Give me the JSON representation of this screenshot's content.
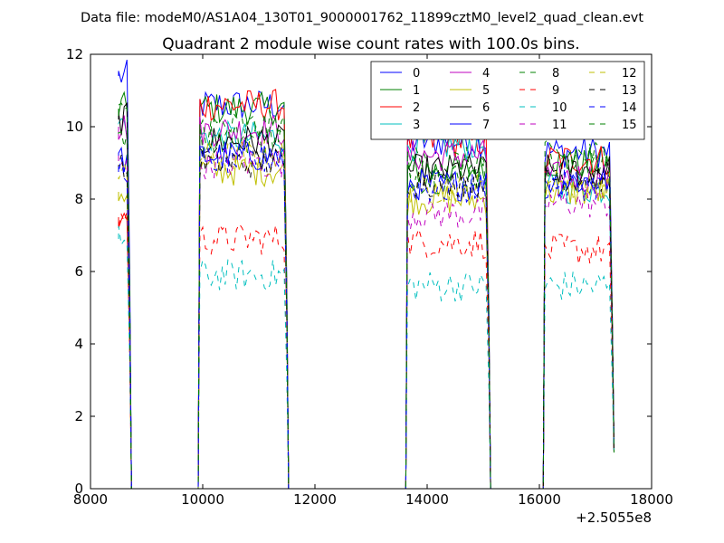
{
  "suptitle": "Data file: modeM0/AS1A04_130T01_9000001762_11899cztM0_level2_quad_clean.evt",
  "chart_data": {
    "type": "line",
    "title": "Quadrant 2 module wise count rates with 100.0s bins.",
    "xlabel": "",
    "ylabel": "",
    "x_offset_label": "+2.5055e8",
    "xlim": [
      8000,
      18000
    ],
    "ylim": [
      0,
      12
    ],
    "xticks": [
      8000,
      10000,
      12000,
      14000,
      16000,
      18000
    ],
    "xtick_labels": [
      "8000",
      "10000",
      "12000",
      "14000",
      "16000",
      "18000"
    ],
    "yticks": [
      0,
      2,
      4,
      6,
      8,
      10,
      12
    ],
    "ytick_labels": [
      "0",
      "2",
      "4",
      "6",
      "8",
      "10",
      "12"
    ],
    "grid": false,
    "legend_position": "top-right",
    "legend_columns": 4,
    "segments": [
      {
        "start": 8500,
        "end": 8700
      },
      {
        "start": 9950,
        "end": 11500
      },
      {
        "start": 13650,
        "end": 15100
      },
      {
        "start": 16100,
        "end": 17300
      }
    ],
    "series": [
      {
        "name": "0",
        "color": "#0000ff",
        "dash": "solid",
        "seg_levels": [
          11.4,
          10.6,
          9.6,
          9.3
        ]
      },
      {
        "name": "1",
        "color": "#008000",
        "dash": "solid",
        "seg_levels": [
          10.5,
          10.5,
          8.8,
          9.0
        ]
      },
      {
        "name": "2",
        "color": "#ff0000",
        "dash": "solid",
        "seg_levels": [
          7.4,
          10.6,
          9.6,
          9.1
        ]
      },
      {
        "name": "3",
        "color": "#00bfbf",
        "dash": "solid",
        "seg_levels": [
          10.1,
          9.7,
          9.5,
          8.3
        ]
      },
      {
        "name": "4",
        "color": "#bf00bf",
        "dash": "solid",
        "seg_levels": [
          10.0,
          9.9,
          9.2,
          8.6
        ]
      },
      {
        "name": "5",
        "color": "#bfbf00",
        "dash": "solid",
        "seg_levels": [
          8.2,
          8.8,
          8.0,
          8.2
        ]
      },
      {
        "name": "6",
        "color": "#000000",
        "dash": "solid",
        "seg_levels": [
          10.2,
          9.6,
          8.8,
          8.8
        ]
      },
      {
        "name": "7",
        "color": "#0000ff",
        "dash": "solid",
        "seg_levels": [
          9.1,
          9.2,
          8.4,
          8.5
        ]
      },
      {
        "name": "8",
        "color": "#008000",
        "dash": "dashed",
        "seg_levels": [
          9.8,
          9.7,
          8.6,
          8.9
        ]
      },
      {
        "name": "9",
        "color": "#ff0000",
        "dash": "dashed",
        "seg_levels": [
          7.5,
          6.9,
          6.8,
          6.6
        ]
      },
      {
        "name": "10",
        "color": "#00bfbf",
        "dash": "dashed",
        "seg_levels": [
          6.9,
          5.9,
          5.6,
          5.6
        ]
      },
      {
        "name": "11",
        "color": "#bf00bf",
        "dash": "dashed",
        "seg_levels": [
          9.2,
          9.0,
          7.6,
          7.9
        ]
      },
      {
        "name": "12",
        "color": "#bfbf00",
        "dash": "dashed",
        "seg_levels": [
          8.6,
          9.2,
          8.3,
          8.4
        ]
      },
      {
        "name": "13",
        "color": "#000000",
        "dash": "dashed",
        "seg_levels": [
          8.8,
          9.0,
          8.5,
          8.6
        ]
      },
      {
        "name": "14",
        "color": "#0000ff",
        "dash": "dashed",
        "seg_levels": [
          8.9,
          9.1,
          8.3,
          8.4
        ]
      },
      {
        "name": "15",
        "color": "#008000",
        "dash": "dashed",
        "seg_levels": [
          10.3,
          10.0,
          9.0,
          9.2
        ]
      }
    ]
  }
}
